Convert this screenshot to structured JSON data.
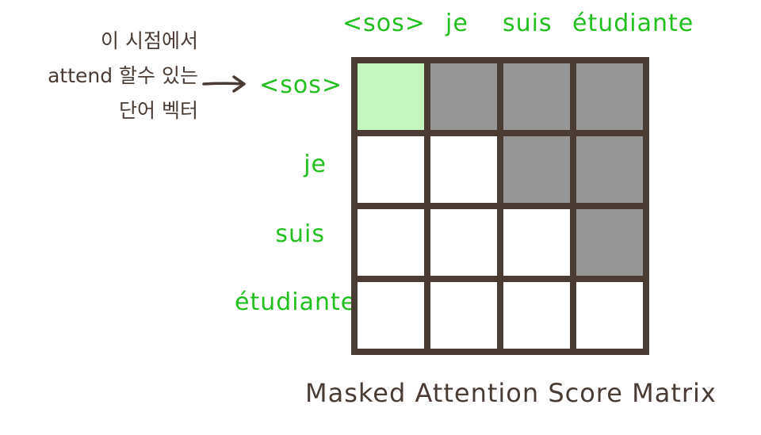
{
  "side_note": {
    "lines": [
      "이 시점에서",
      "attend 할수 있는",
      "단어 벡터"
    ]
  },
  "tokens": [
    "<sos>",
    "je",
    "suis",
    "étudiante"
  ],
  "matrix": {
    "cells": [
      [
        "current",
        "masked",
        "masked",
        "masked"
      ],
      [
        "open",
        "open",
        "masked",
        "masked"
      ],
      [
        "open",
        "open",
        "open",
        "masked"
      ],
      [
        "open",
        "open",
        "open",
        "open"
      ]
    ]
  },
  "colors": {
    "token": "#22c01e",
    "ink": "#4a3b33",
    "current": "#c4f7bd",
    "masked": "#969696",
    "open": "#ffffff"
  },
  "title": "Masked Attention Score Matrix"
}
